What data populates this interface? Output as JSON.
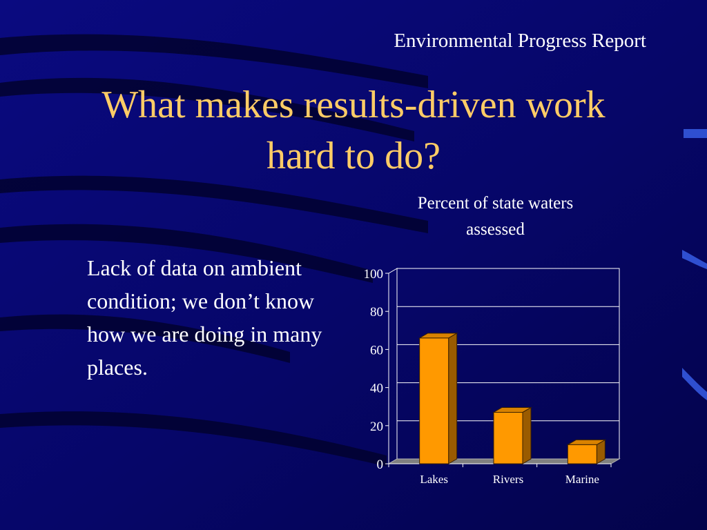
{
  "header": {
    "report_title": "Environmental Progress Report"
  },
  "slide": {
    "title_line1": "What makes results-driven work",
    "title_line2": "hard to do?",
    "body_text": "Lack of data on ambient condition; we don’t know how we are doing in many places."
  },
  "colors": {
    "background": "#06066e",
    "title": "#ffcc66",
    "text": "#ffffff",
    "bar_front": "#ff9900",
    "bar_side": "#9a5b00",
    "bar_top": "#d98200",
    "floor": "#808080"
  },
  "chart_data": {
    "type": "bar",
    "title_line1": "Percent of state waters",
    "title_line2": "assessed",
    "categories": [
      "Lakes",
      "Rivers",
      "Marine"
    ],
    "values": [
      66,
      27,
      10
    ],
    "ylim": [
      0,
      100
    ],
    "yticks": [
      0,
      20,
      40,
      60,
      80,
      100
    ],
    "xlabel": "",
    "ylabel": "",
    "grid": true,
    "legend": "none",
    "style": "3d"
  }
}
